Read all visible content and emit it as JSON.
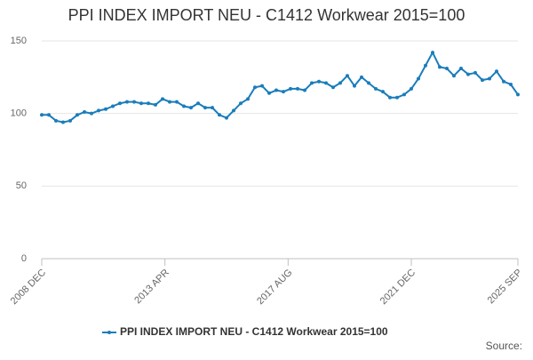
{
  "chart_data": {
    "type": "line",
    "title": "PPI INDEX IMPORT NEU - C1412 Workwear 2015=100",
    "source": "Source:",
    "x": [
      "2008-12",
      "2009-03",
      "2009-06",
      "2009-09",
      "2009-12",
      "2010-03",
      "2010-06",
      "2010-09",
      "2010-12",
      "2011-03",
      "2011-06",
      "2011-09",
      "2011-12",
      "2012-03",
      "2012-06",
      "2012-09",
      "2012-12",
      "2013-03",
      "2013-06",
      "2013-09",
      "2013-12",
      "2014-03",
      "2014-06",
      "2014-09",
      "2014-12",
      "2015-03",
      "2015-06",
      "2015-09",
      "2015-12",
      "2016-03",
      "2016-06",
      "2016-09",
      "2016-12",
      "2017-03",
      "2017-06",
      "2017-09",
      "2017-12",
      "2018-03",
      "2018-06",
      "2018-09",
      "2018-12",
      "2019-03",
      "2019-06",
      "2019-09",
      "2019-12",
      "2020-03",
      "2020-06",
      "2020-09",
      "2020-12",
      "2021-03",
      "2021-06",
      "2021-09",
      "2021-12",
      "2022-03",
      "2022-06",
      "2022-09",
      "2022-12",
      "2023-03",
      "2023-06",
      "2023-09",
      "2023-12",
      "2024-03",
      "2024-06",
      "2024-09",
      "2024-12",
      "2025-03",
      "2025-06",
      "2025-09"
    ],
    "series": [
      {
        "name": "PPI INDEX IMPORT NEU - C1412 Workwear 2015=100",
        "color": "#1a7dbb",
        "values": [
          99,
          99,
          95,
          94,
          95,
          99,
          101,
          100,
          102,
          103,
          105,
          107,
          108,
          108,
          107,
          107,
          106,
          110,
          108,
          108,
          105,
          104,
          107,
          104,
          104,
          99,
          97,
          102,
          107,
          110,
          118,
          119,
          114,
          116,
          115,
          117,
          117,
          116,
          121,
          122,
          121,
          118,
          121,
          126,
          119,
          125,
          121,
          117,
          115,
          111,
          111,
          113,
          117,
          124,
          133,
          142,
          132,
          131,
          126,
          131,
          127,
          128,
          123,
          124,
          129,
          122,
          120,
          113
        ]
      }
    ],
    "ylim": [
      0,
      150
    ],
    "yticks": [
      0,
      50,
      100,
      150
    ],
    "xlim": [
      "2008-12",
      "2025-09"
    ],
    "xticks": [
      {
        "value": "2008-12",
        "label": "2008 DEC"
      },
      {
        "value": "2013-04",
        "label": "2013 APR"
      },
      {
        "value": "2017-08",
        "label": "2017 AUG"
      },
      {
        "value": "2021-12",
        "label": "2021 DEC"
      },
      {
        "value": "2025-09",
        "label": "2025 SEP"
      }
    ],
    "grid": true,
    "legend": "bottom"
  }
}
